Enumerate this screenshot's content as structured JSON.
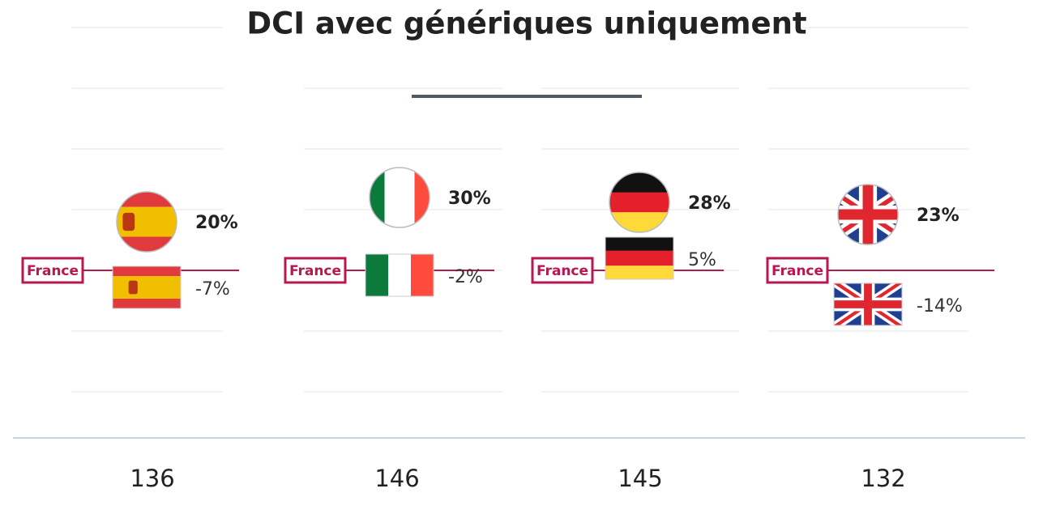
{
  "chart_data": {
    "type": "dot",
    "title": "DCI avec génériques uniquement",
    "reference_label": "France",
    "reference_value": 0,
    "series": [
      {
        "values": [
          20,
          30,
          28,
          23
        ],
        "value_labels": [
          "20%",
          "30%",
          "28%",
          "23%"
        ]
      },
      {
        "values": [
          -7,
          -2,
          5,
          -14
        ],
        "value_labels": [
          "-7%",
          "-2%",
          "5%",
          "-14%"
        ]
      }
    ],
    "totals": [
      136,
      146,
      145,
      132
    ],
    "ylim": [
      -50,
      100
    ],
    "yticks": [
      -50,
      -25,
      0,
      25,
      50,
      75,
      100
    ],
    "grid": true,
    "reference_color": "#b8174f"
  }
}
